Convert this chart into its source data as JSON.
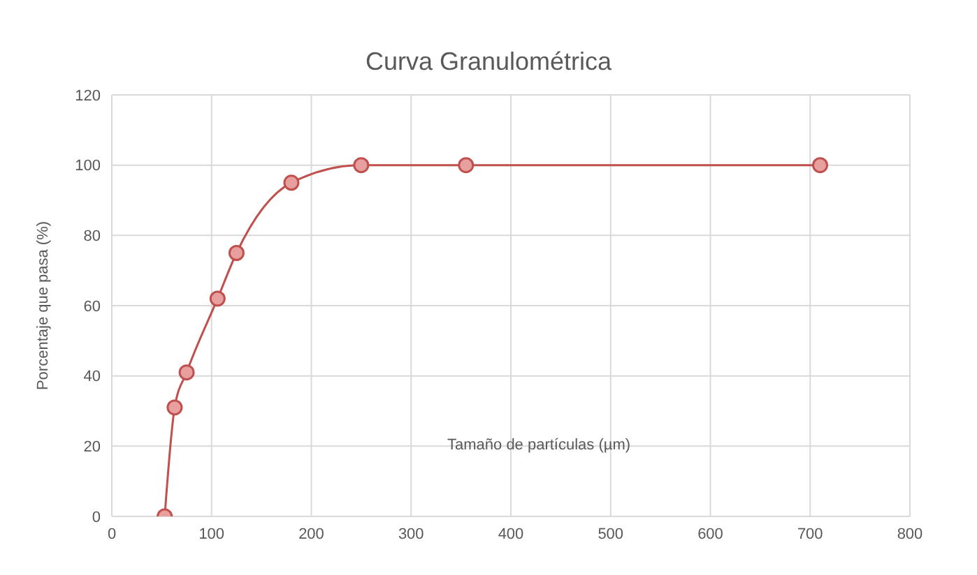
{
  "chart_data": {
    "type": "line",
    "title": "Curva Granulométrica",
    "xlabel": "Tamaño de partículas (µm)",
    "ylabel": "Porcentaje que pasa (%)",
    "x": [
      53,
      63,
      75,
      106,
      125,
      180,
      250,
      355,
      710
    ],
    "series": [
      {
        "color": "#c0504d",
        "values": [
          0,
          31,
          41,
          62,
          75,
          95,
          100,
          100,
          100
        ]
      }
    ],
    "xlim": [
      0,
      800
    ],
    "xticks": [
      0,
      100,
      200,
      300,
      400,
      500,
      600,
      700,
      800
    ],
    "ylim": [
      0,
      120
    ],
    "yticks": [
      0,
      20,
      40,
      60,
      80,
      100,
      120
    ],
    "grid": true,
    "marker": "circle",
    "line_style": "solid"
  }
}
